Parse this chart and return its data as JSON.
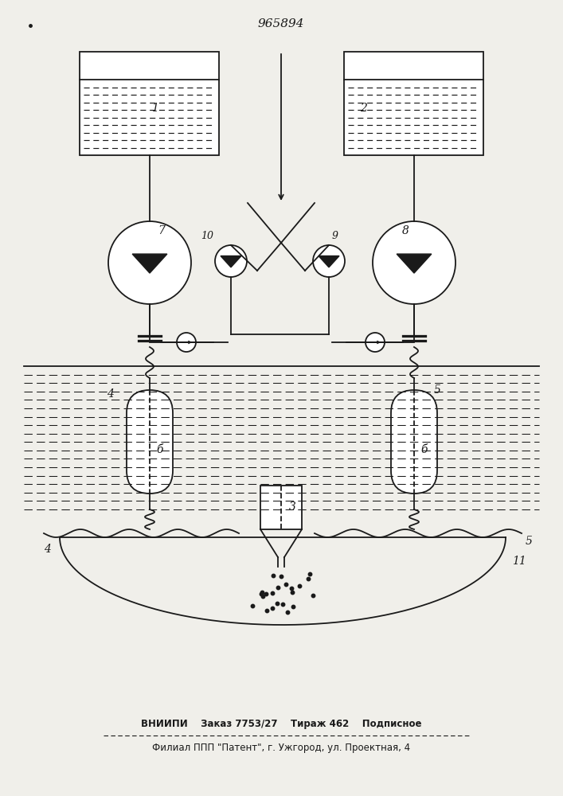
{
  "title": "965894",
  "bg_color": "#f0efea",
  "line_color": "#1a1a1a",
  "footer_line1": "ВНИИПИ    Заказ 7753/27    Тираж 462    Подписное",
  "footer_line2": "Филиал ППП \"Патент\", г. Ужгород, ул. Проектная, 4",
  "figsize": [
    7.07,
    10.0
  ],
  "dpi": 100
}
